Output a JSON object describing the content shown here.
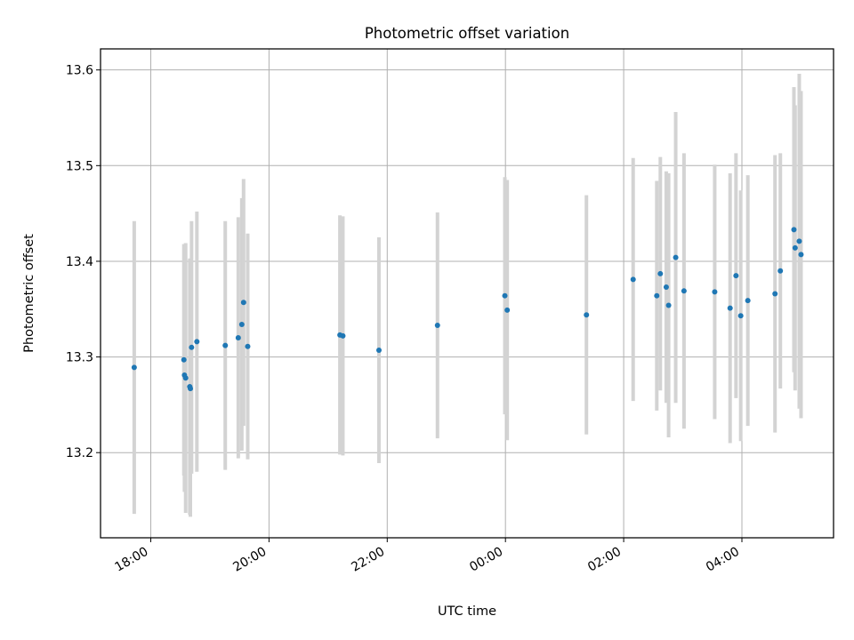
{
  "chart_data": {
    "type": "scatter",
    "title": "Photometric offset variation",
    "xlabel": "UTC time",
    "ylabel": "Photometric offset",
    "x_unit": "hours",
    "xlim": [
      17.15,
      29.55
    ],
    "ylim": [
      13.111,
      13.622
    ],
    "xticks": [
      {
        "value": 18,
        "label": "18:00"
      },
      {
        "value": 20,
        "label": "20:00"
      },
      {
        "value": 22,
        "label": "22:00"
      },
      {
        "value": 24,
        "label": "00:00"
      },
      {
        "value": 26,
        "label": "02:00"
      },
      {
        "value": 28,
        "label": "04:00"
      }
    ],
    "yticks": [
      {
        "value": 13.2,
        "label": "13.2"
      },
      {
        "value": 13.3,
        "label": "13.3"
      },
      {
        "value": 13.4,
        "label": "13.4"
      },
      {
        "value": 13.5,
        "label": "13.5"
      },
      {
        "value": 13.6,
        "label": "13.6"
      }
    ],
    "grid": true,
    "colors": {
      "marker": "#1f77b4",
      "errorbar": "#d3d3d3",
      "grid": "#b0b0b0"
    },
    "points": [
      {
        "x": 17.72,
        "y": 13.289,
        "err": 0.153
      },
      {
        "x": 18.56,
        "y": 13.297,
        "err": 0.121
      },
      {
        "x": 18.57,
        "y": 13.281,
        "err": 0.122
      },
      {
        "x": 18.59,
        "y": 13.278,
        "err": 0.141
      },
      {
        "x": 18.66,
        "y": 13.269,
        "err": 0.134
      },
      {
        "x": 18.67,
        "y": 13.267,
        "err": 0.134
      },
      {
        "x": 18.69,
        "y": 13.31,
        "err": 0.132
      },
      {
        "x": 18.78,
        "y": 13.316,
        "err": 0.136
      },
      {
        "x": 19.26,
        "y": 13.312,
        "err": 0.13
      },
      {
        "x": 19.48,
        "y": 13.32,
        "err": 0.126
      },
      {
        "x": 19.54,
        "y": 13.334,
        "err": 0.132
      },
      {
        "x": 19.57,
        "y": 13.357,
        "err": 0.129
      },
      {
        "x": 19.64,
        "y": 13.311,
        "err": 0.118
      },
      {
        "x": 21.2,
        "y": 13.323,
        "err": 0.125
      },
      {
        "x": 21.25,
        "y": 13.322,
        "err": 0.125
      },
      {
        "x": 21.86,
        "y": 13.307,
        "err": 0.118
      },
      {
        "x": 22.85,
        "y": 13.333,
        "err": 0.118
      },
      {
        "x": 23.99,
        "y": 13.364,
        "err": 0.124
      },
      {
        "x": 24.03,
        "y": 13.349,
        "err": 0.136
      },
      {
        "x": 25.37,
        "y": 13.344,
        "err": 0.125
      },
      {
        "x": 26.16,
        "y": 13.381,
        "err": 0.127
      },
      {
        "x": 26.56,
        "y": 13.364,
        "err": 0.12
      },
      {
        "x": 26.62,
        "y": 13.387,
        "err": 0.122
      },
      {
        "x": 26.72,
        "y": 13.373,
        "err": 0.121
      },
      {
        "x": 26.76,
        "y": 13.354,
        "err": 0.138
      },
      {
        "x": 26.88,
        "y": 13.404,
        "err": 0.152
      },
      {
        "x": 27.02,
        "y": 13.369,
        "err": 0.144
      },
      {
        "x": 27.54,
        "y": 13.368,
        "err": 0.133
      },
      {
        "x": 27.8,
        "y": 13.351,
        "err": 0.141
      },
      {
        "x": 27.9,
        "y": 13.385,
        "err": 0.128
      },
      {
        "x": 27.98,
        "y": 13.343,
        "err": 0.131
      },
      {
        "x": 28.1,
        "y": 13.359,
        "err": 0.131
      },
      {
        "x": 28.56,
        "y": 13.366,
        "err": 0.145
      },
      {
        "x": 28.65,
        "y": 13.39,
        "err": 0.123
      },
      {
        "x": 28.88,
        "y": 13.433,
        "err": 0.149
      },
      {
        "x": 28.9,
        "y": 13.414,
        "err": 0.149
      },
      {
        "x": 28.97,
        "y": 13.421,
        "err": 0.175
      },
      {
        "x": 29.0,
        "y": 13.407,
        "err": 0.171
      }
    ]
  }
}
